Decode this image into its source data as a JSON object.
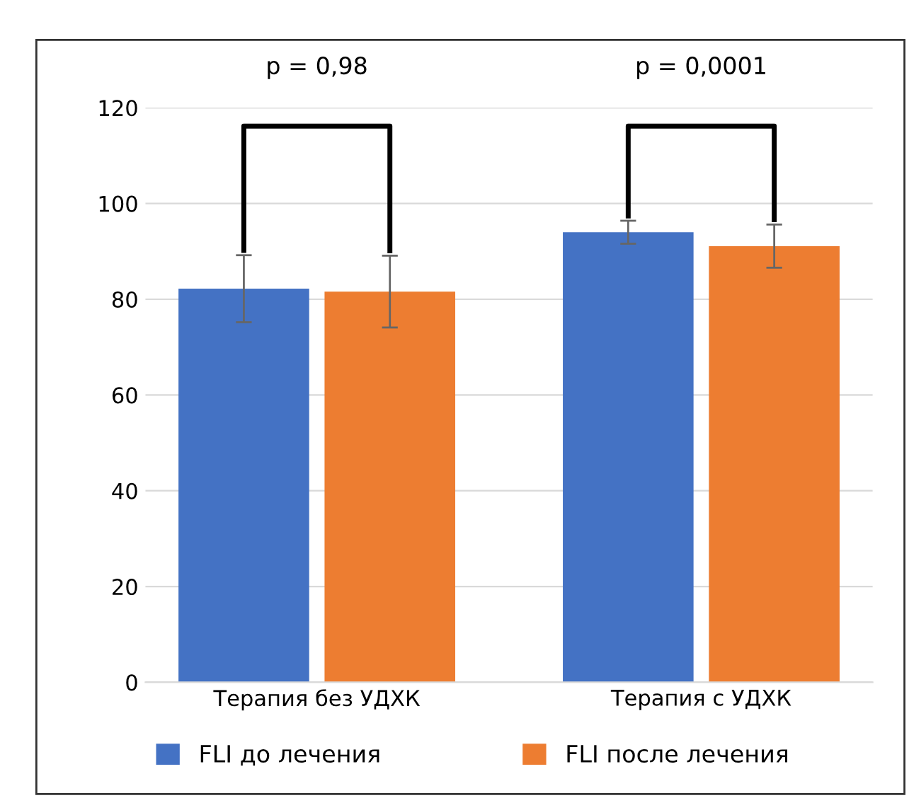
{
  "chart_data": {
    "type": "bar",
    "categories": [
      "Терапия без УДХК",
      "Терапия с УДХК"
    ],
    "series": [
      {
        "name": "FLI до лечения",
        "color": "#4472c4",
        "values": [
          82.2,
          94.0
        ],
        "errors": [
          7,
          2.4
        ]
      },
      {
        "name": "FLI после лечения",
        "color": "#ed7d31",
        "values": [
          81.6,
          91.1
        ],
        "errors": [
          7.5,
          4.5
        ]
      }
    ],
    "ylim": [
      0,
      120
    ],
    "yticks": [
      0,
      20,
      40,
      60,
      80,
      100,
      120
    ],
    "grid": "y",
    "legend": "bottom",
    "annotations": [
      "p = 0,98",
      "p = 0,0001"
    ]
  }
}
